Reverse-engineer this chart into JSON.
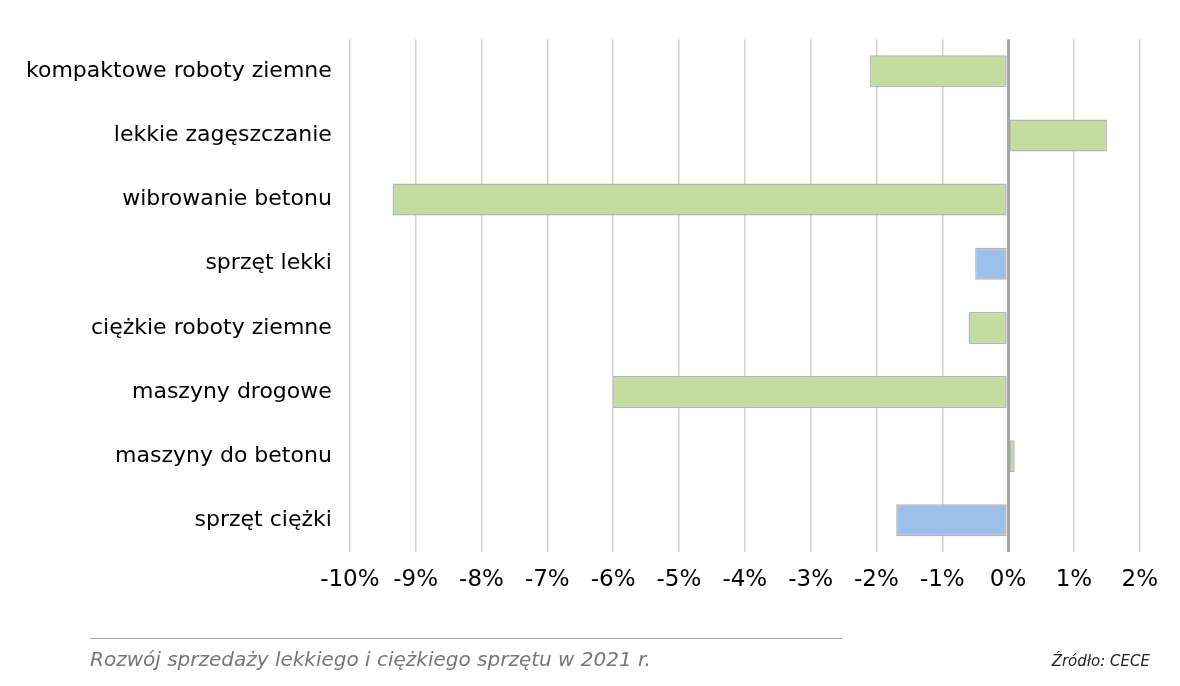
{
  "chart_data": {
    "type": "bar",
    "orientation": "horizontal",
    "categories": [
      "kompaktowe roboty ziemne",
      "lekkie zagęszczanie",
      "wibrowanie betonu",
      "sprzęt lekki",
      "ciężkie roboty ziemne",
      "maszyny drogowe",
      "maszyny do betonu",
      "sprzęt ciężki"
    ],
    "values": [
      -2.1,
      1.5,
      -9.35,
      -0.5,
      -0.6,
      -6.0,
      0.1,
      -1.7
    ],
    "colors": [
      "#c4dca0",
      "#c4dca0",
      "#c4dca0",
      "#9cc0ea",
      "#c4dca0",
      "#c4dca0",
      "#c4dca0",
      "#9cc0ea"
    ],
    "xlim": [
      -10,
      2
    ],
    "xticks": [
      {
        "value": -10,
        "label": "-10%"
      },
      {
        "value": -9,
        "label": "-9%"
      },
      {
        "value": -8,
        "label": "-8%"
      },
      {
        "value": -7,
        "label": "-7%"
      },
      {
        "value": -6,
        "label": "-6%"
      },
      {
        "value": -5,
        "label": "-5%"
      },
      {
        "value": -4,
        "label": "-4%"
      },
      {
        "value": -3,
        "label": "-3%"
      },
      {
        "value": -2,
        "label": "-2%"
      },
      {
        "value": -1,
        "label": "-1%"
      },
      {
        "value": 0,
        "label": "0%"
      },
      {
        "value": 1,
        "label": "1%"
      },
      {
        "value": 2,
        "label": "2%"
      }
    ],
    "grid": "x",
    "legend": false,
    "annotations": [
      "Rozwój sprzedaży lekkiego i ciężkiego sprzętu w 2021 r.",
      "Źródło: CECE"
    ]
  }
}
